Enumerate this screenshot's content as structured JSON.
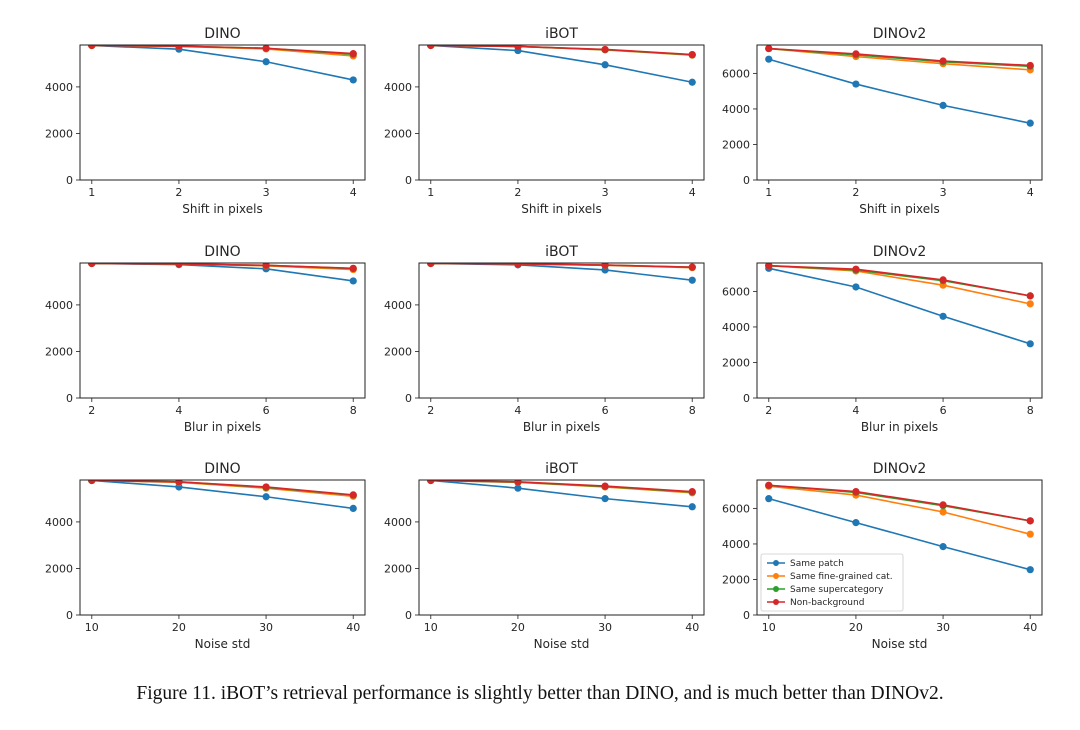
{
  "caption": "Figure 11. iBOT’s retrieval performance is slightly better than DINO, and is much better than DINOv2.",
  "chart_data": [
    {
      "type": "line",
      "title": "DINO",
      "xlabel": "Shift in pixels",
      "ylabel": "",
      "x": [
        1,
        2,
        3,
        4
      ],
      "xticks": [
        1,
        2,
        3,
        4
      ],
      "ylim": [
        0,
        5800
      ],
      "yticks": [
        0,
        2000,
        4000
      ],
      "grid": false,
      "legend": "",
      "series": [
        {
          "name": "Same patch",
          "color": "#1f77b4",
          "values": [
            5780,
            5620,
            5080,
            4300
          ]
        },
        {
          "name": "Same fine-grained cat.",
          "color": "#ff7f0e",
          "values": [
            5780,
            5740,
            5630,
            5330
          ]
        },
        {
          "name": "Same supercategory",
          "color": "#2ca02c",
          "values": [
            5780,
            5750,
            5660,
            5400
          ]
        },
        {
          "name": "Non-background",
          "color": "#d62728",
          "values": [
            5780,
            5750,
            5660,
            5430
          ]
        }
      ]
    },
    {
      "type": "line",
      "title": "iBOT",
      "xlabel": "Shift in pixels",
      "ylabel": "",
      "x": [
        1,
        2,
        3,
        4
      ],
      "xticks": [
        1,
        2,
        3,
        4
      ],
      "ylim": [
        0,
        5800
      ],
      "yticks": [
        0,
        2000,
        4000
      ],
      "grid": false,
      "legend": "",
      "series": [
        {
          "name": "Same patch",
          "color": "#1f77b4",
          "values": [
            5780,
            5560,
            4950,
            4200
          ]
        },
        {
          "name": "Same fine-grained cat.",
          "color": "#ff7f0e",
          "values": [
            5780,
            5740,
            5590,
            5360
          ]
        },
        {
          "name": "Same supercategory",
          "color": "#2ca02c",
          "values": [
            5780,
            5740,
            5600,
            5380
          ]
        },
        {
          "name": "Non-background",
          "color": "#d62728",
          "values": [
            5780,
            5740,
            5610,
            5390
          ]
        }
      ]
    },
    {
      "type": "line",
      "title": "DINOv2",
      "xlabel": "Shift in pixels",
      "ylabel": "",
      "x": [
        1,
        2,
        3,
        4
      ],
      "xticks": [
        1,
        2,
        3,
        4
      ],
      "ylim": [
        0,
        7600
      ],
      "yticks": [
        0,
        2000,
        4000,
        6000
      ],
      "grid": false,
      "legend": "",
      "series": [
        {
          "name": "Same patch",
          "color": "#1f77b4",
          "values": [
            6800,
            5400,
            4200,
            3200
          ]
        },
        {
          "name": "Same fine-grained cat.",
          "color": "#ff7f0e",
          "values": [
            7400,
            6950,
            6550,
            6200
          ]
        },
        {
          "name": "Same supercategory",
          "color": "#2ca02c",
          "values": [
            7400,
            7050,
            6650,
            6400
          ]
        },
        {
          "name": "Non-background",
          "color": "#d62728",
          "values": [
            7400,
            7100,
            6700,
            6450
          ]
        }
      ]
    },
    {
      "type": "line",
      "title": "DINO",
      "xlabel": "Blur in pixels",
      "ylabel": "",
      "x": [
        2,
        4,
        6,
        8
      ],
      "xticks": [
        2,
        4,
        6,
        8
      ],
      "ylim": [
        0,
        5800
      ],
      "yticks": [
        0,
        2000,
        4000
      ],
      "grid": false,
      "legend": "",
      "series": [
        {
          "name": "Same patch",
          "color": "#1f77b4",
          "values": [
            5780,
            5730,
            5550,
            5030
          ]
        },
        {
          "name": "Same fine-grained cat.",
          "color": "#ff7f0e",
          "values": [
            5780,
            5760,
            5680,
            5520
          ]
        },
        {
          "name": "Same supercategory",
          "color": "#2ca02c",
          "values": [
            5780,
            5760,
            5700,
            5560
          ]
        },
        {
          "name": "Non-background",
          "color": "#d62728",
          "values": [
            5780,
            5760,
            5700,
            5570
          ]
        }
      ]
    },
    {
      "type": "line",
      "title": "iBOT",
      "xlabel": "Blur in pixels",
      "ylabel": "",
      "x": [
        2,
        4,
        6,
        8
      ],
      "xticks": [
        2,
        4,
        6,
        8
      ],
      "ylim": [
        0,
        5800
      ],
      "yticks": [
        0,
        2000,
        4000
      ],
      "grid": false,
      "legend": "",
      "series": [
        {
          "name": "Same patch",
          "color": "#1f77b4",
          "values": [
            5780,
            5720,
            5500,
            5060
          ]
        },
        {
          "name": "Same fine-grained cat.",
          "color": "#ff7f0e",
          "values": [
            5780,
            5760,
            5700,
            5600
          ]
        },
        {
          "name": "Same supercategory",
          "color": "#2ca02c",
          "values": [
            5780,
            5760,
            5710,
            5620
          ]
        },
        {
          "name": "Non-background",
          "color": "#d62728",
          "values": [
            5780,
            5760,
            5710,
            5620
          ]
        }
      ]
    },
    {
      "type": "line",
      "title": "DINOv2",
      "xlabel": "Blur in pixels",
      "ylabel": "",
      "x": [
        2,
        4,
        6,
        8
      ],
      "xticks": [
        2,
        4,
        6,
        8
      ],
      "ylim": [
        0,
        7600
      ],
      "yticks": [
        0,
        2000,
        4000,
        6000
      ],
      "grid": false,
      "legend": "",
      "series": [
        {
          "name": "Same patch",
          "color": "#1f77b4",
          "values": [
            7300,
            6250,
            4600,
            3050
          ]
        },
        {
          "name": "Same fine-grained cat.",
          "color": "#ff7f0e",
          "values": [
            7450,
            7150,
            6350,
            5300
          ]
        },
        {
          "name": "Same supercategory",
          "color": "#2ca02c",
          "values": [
            7450,
            7200,
            6600,
            5750
          ]
        },
        {
          "name": "Non-background",
          "color": "#d62728",
          "values": [
            7450,
            7250,
            6650,
            5750
          ]
        }
      ]
    },
    {
      "type": "line",
      "title": "DINO",
      "xlabel": "Noise std",
      "ylabel": "",
      "x": [
        10,
        20,
        30,
        40
      ],
      "xticks": [
        10,
        20,
        30,
        40
      ],
      "ylim": [
        0,
        5800
      ],
      "yticks": [
        0,
        2000,
        4000
      ],
      "grid": false,
      "legend": "",
      "series": [
        {
          "name": "Same patch",
          "color": "#1f77b4",
          "values": [
            5780,
            5500,
            5080,
            4580
          ]
        },
        {
          "name": "Same fine-grained cat.",
          "color": "#ff7f0e",
          "values": [
            5780,
            5700,
            5450,
            5100
          ]
        },
        {
          "name": "Same supercategory",
          "color": "#2ca02c",
          "values": [
            5780,
            5720,
            5480,
            5150
          ]
        },
        {
          "name": "Non-background",
          "color": "#d62728",
          "values": [
            5780,
            5720,
            5500,
            5160
          ]
        }
      ]
    },
    {
      "type": "line",
      "title": "iBOT",
      "xlabel": "Noise std",
      "ylabel": "",
      "x": [
        10,
        20,
        30,
        40
      ],
      "xticks": [
        10,
        20,
        30,
        40
      ],
      "ylim": [
        0,
        5800
      ],
      "yticks": [
        0,
        2000,
        4000
      ],
      "grid": false,
      "legend": "",
      "series": [
        {
          "name": "Same patch",
          "color": "#1f77b4",
          "values": [
            5780,
            5450,
            5000,
            4650
          ]
        },
        {
          "name": "Same fine-grained cat.",
          "color": "#ff7f0e",
          "values": [
            5780,
            5700,
            5500,
            5250
          ]
        },
        {
          "name": "Same supercategory",
          "color": "#2ca02c",
          "values": [
            5780,
            5710,
            5520,
            5280
          ]
        },
        {
          "name": "Non-background",
          "color": "#d62728",
          "values": [
            5780,
            5720,
            5540,
            5300
          ]
        }
      ]
    },
    {
      "type": "line",
      "title": "DINOv2",
      "xlabel": "Noise std",
      "ylabel": "",
      "x": [
        10,
        20,
        30,
        40
      ],
      "xticks": [
        10,
        20,
        30,
        40
      ],
      "ylim": [
        0,
        7600
      ],
      "yticks": [
        0,
        2000,
        4000,
        6000
      ],
      "grid": false,
      "legend": "lower-left",
      "series": [
        {
          "name": "Same patch",
          "color": "#1f77b4",
          "values": [
            6550,
            5200,
            3850,
            2550
          ]
        },
        {
          "name": "Same fine-grained cat.",
          "color": "#ff7f0e",
          "values": [
            7250,
            6750,
            5800,
            4550
          ]
        },
        {
          "name": "Same supercategory",
          "color": "#2ca02c",
          "values": [
            7300,
            6900,
            6150,
            5300
          ]
        },
        {
          "name": "Non-background",
          "color": "#d62728",
          "values": [
            7300,
            6950,
            6200,
            5300
          ]
        }
      ]
    }
  ]
}
